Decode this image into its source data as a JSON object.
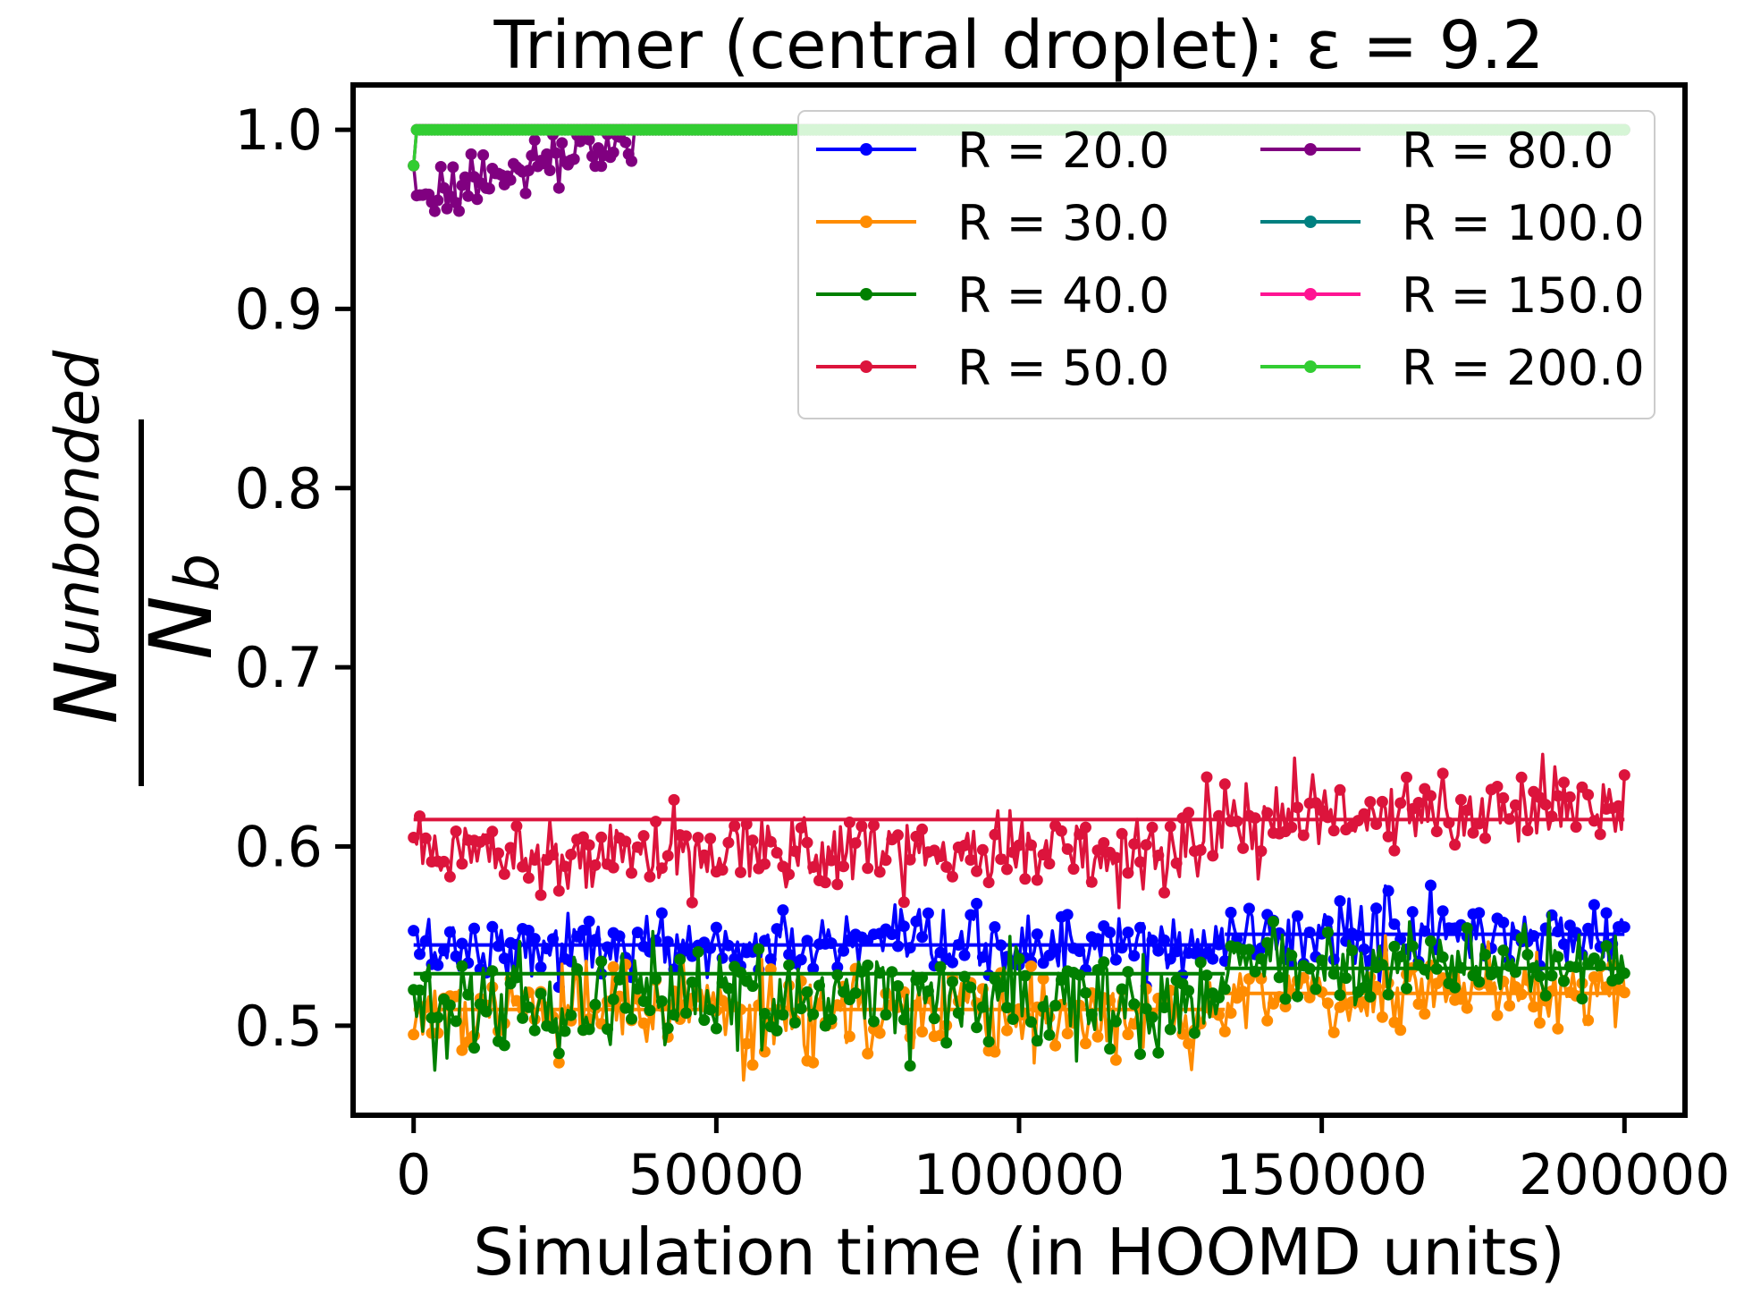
{
  "chart_data": {
    "type": "line",
    "title": "Trimer (central droplet): ε = 9.2",
    "xlabel": "Simulation time (in HOOMD units)",
    "ylabel": {
      "numerator_main": "N",
      "numerator_sub": "unbonded",
      "denominator_main": "N",
      "denominator_sub": "b"
    },
    "xlim": [
      -10000,
      210000
    ],
    "ylim": [
      0.45,
      1.025
    ],
    "xticks": [
      0,
      50000,
      100000,
      150000,
      200000
    ],
    "xtick_labels": [
      "0",
      "50000",
      "100000",
      "150000",
      "200000"
    ],
    "yticks": [
      0.5,
      0.6,
      0.7,
      0.8,
      0.9,
      1.0
    ],
    "ytick_labels": [
      "0.5",
      "0.6",
      "0.7",
      "0.8",
      "0.9",
      "1.0"
    ],
    "legend_position": "top-right",
    "legend_columns": 2,
    "series": [
      {
        "name": "R = 20.0",
        "color": "#0000ff",
        "initial": 0.553,
        "regimes": [
          {
            "until": 134000,
            "mean": 0.544,
            "jitter": 0.009
          },
          {
            "until": 200000,
            "mean": 0.551,
            "jitter": 0.01
          }
        ],
        "mean_lines": [
          [
            0,
            134000,
            0.545
          ],
          [
            134000,
            200000,
            0.551
          ]
        ]
      },
      {
        "name": "R = 30.0",
        "color": "#ff8c00",
        "initial": 0.495,
        "regimes": [
          {
            "until": 134000,
            "mean": 0.507,
            "jitter": 0.012
          },
          {
            "until": 200000,
            "mean": 0.518,
            "jitter": 0.01
          }
        ],
        "mean_lines": [
          [
            0,
            134000,
            0.509
          ],
          [
            134000,
            200000,
            0.518
          ]
        ]
      },
      {
        "name": "R = 40.0",
        "color": "#008000",
        "initial": 0.52,
        "regimes": [
          {
            "until": 134000,
            "mean": 0.515,
            "jitter": 0.014
          },
          {
            "until": 200000,
            "mean": 0.535,
            "jitter": 0.011
          }
        ],
        "mean_lines": [
          [
            0,
            134000,
            0.529
          ],
          [
            134000,
            200000,
            0.532
          ]
        ]
      },
      {
        "name": "R = 50.0",
        "color": "#dc143c",
        "initial": 0.605,
        "regimes": [
          {
            "until": 130000,
            "mean": 0.598,
            "jitter": 0.011
          },
          {
            "until": 200000,
            "mean": 0.62,
            "jitter": 0.012
          }
        ],
        "mean_lines": [
          [
            0,
            200000,
            0.615
          ]
        ]
      },
      {
        "name": "R = 80.0",
        "color": "#800080",
        "initial": 0.98,
        "ramp": {
          "from": 0.96,
          "to": 0.995,
          "until": 36000
        },
        "regimes": [
          {
            "until": 200000,
            "mean": 1.0,
            "jitter": 0
          }
        ],
        "mean_lines": []
      },
      {
        "name": "R = 100.0",
        "color": "#008080",
        "initial": 0.98,
        "regimes": [
          {
            "until": 200000,
            "mean": 1.0,
            "jitter": 0
          }
        ],
        "mean_lines": []
      },
      {
        "name": "R = 150.0",
        "color": "#ff1493",
        "initial": 0.98,
        "regimes": [
          {
            "until": 200000,
            "mean": 1.0,
            "jitter": 0
          }
        ],
        "mean_lines": []
      },
      {
        "name": "R = 200.0",
        "color": "#32cd32",
        "initial": 0.98,
        "regimes": [
          {
            "until": 200000,
            "mean": 1.0,
            "jitter": 0
          }
        ],
        "mean_lines": []
      }
    ]
  }
}
